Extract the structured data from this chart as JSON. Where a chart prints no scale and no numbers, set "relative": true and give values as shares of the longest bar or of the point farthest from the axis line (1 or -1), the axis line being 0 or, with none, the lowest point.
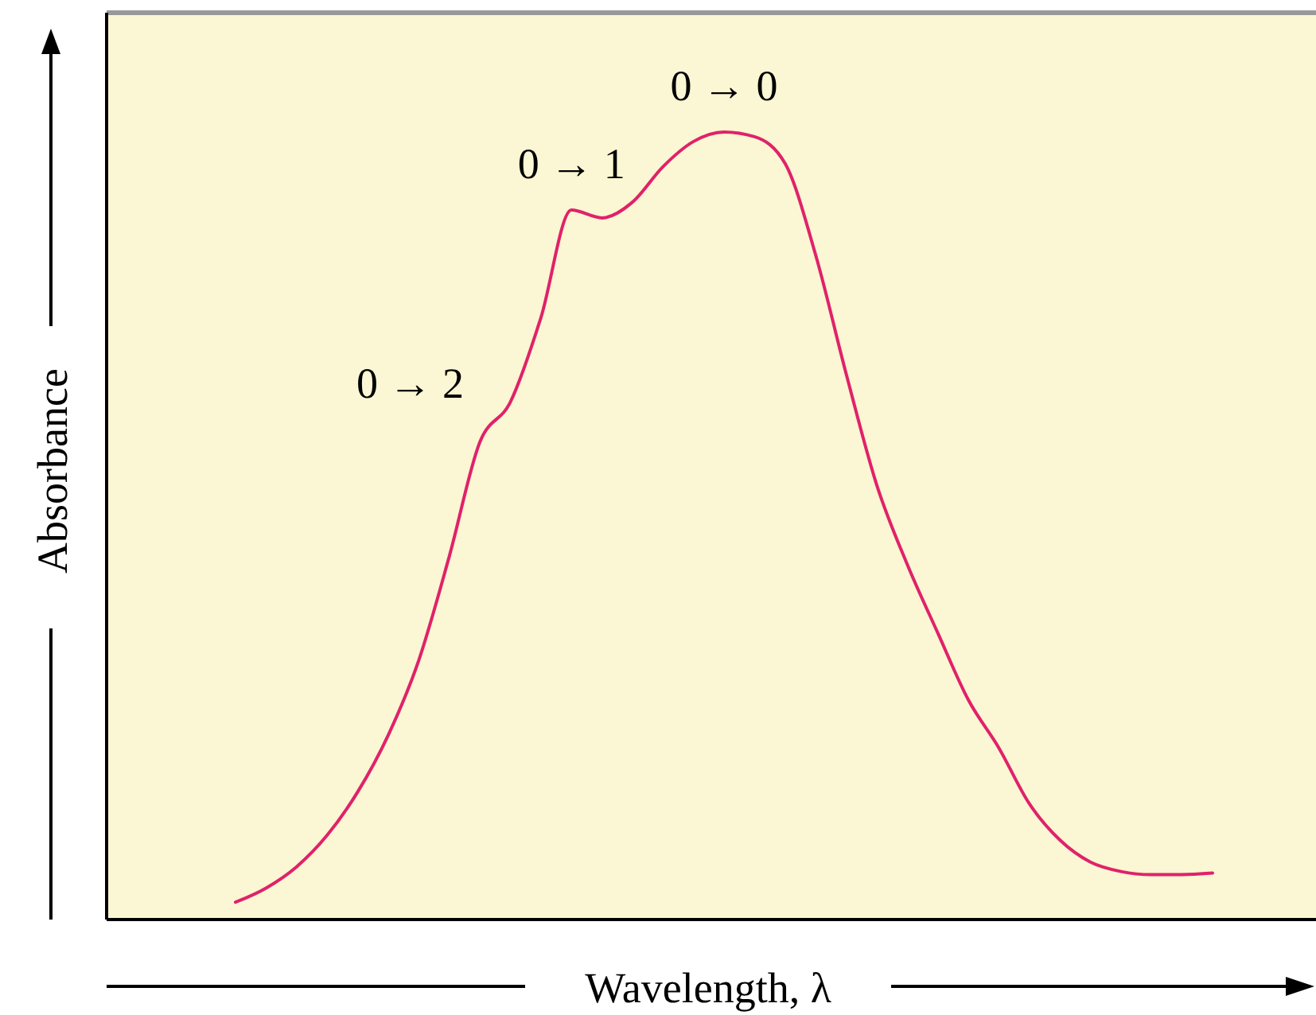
{
  "chart_data": {
    "type": "line",
    "relative": true,
    "xlabel": "Wavelength, λ",
    "ylabel": "Absorbance",
    "categories": [
      null,
      null,
      null,
      null,
      null,
      null,
      null,
      null,
      null,
      null,
      null,
      null,
      null,
      null,
      null,
      null,
      null,
      null,
      null,
      null,
      null,
      null,
      null,
      null,
      null,
      null,
      null,
      null,
      null,
      null,
      null,
      null,
      null
    ],
    "series": [
      {
        "color": "#e0226a",
        "values": [
          0.022,
          0.04,
          0.067,
          0.107,
          0.162,
          0.234,
          0.329,
          0.461,
          0.606,
          0.657,
          0.764,
          0.901,
          0.891,
          0.911,
          0.956,
          0.988,
          1,
          0.994,
          0.96,
          0.844,
          0.693,
          0.552,
          0.451,
          0.364,
          0.279,
          0.218,
          0.147,
          0.101,
          0.073,
          0.061,
          0.057,
          0.057,
          0.059
        ]
      }
    ],
    "annotations": [
      "0 → 0",
      "0 → 1",
      "0 → 2"
    ]
  }
}
